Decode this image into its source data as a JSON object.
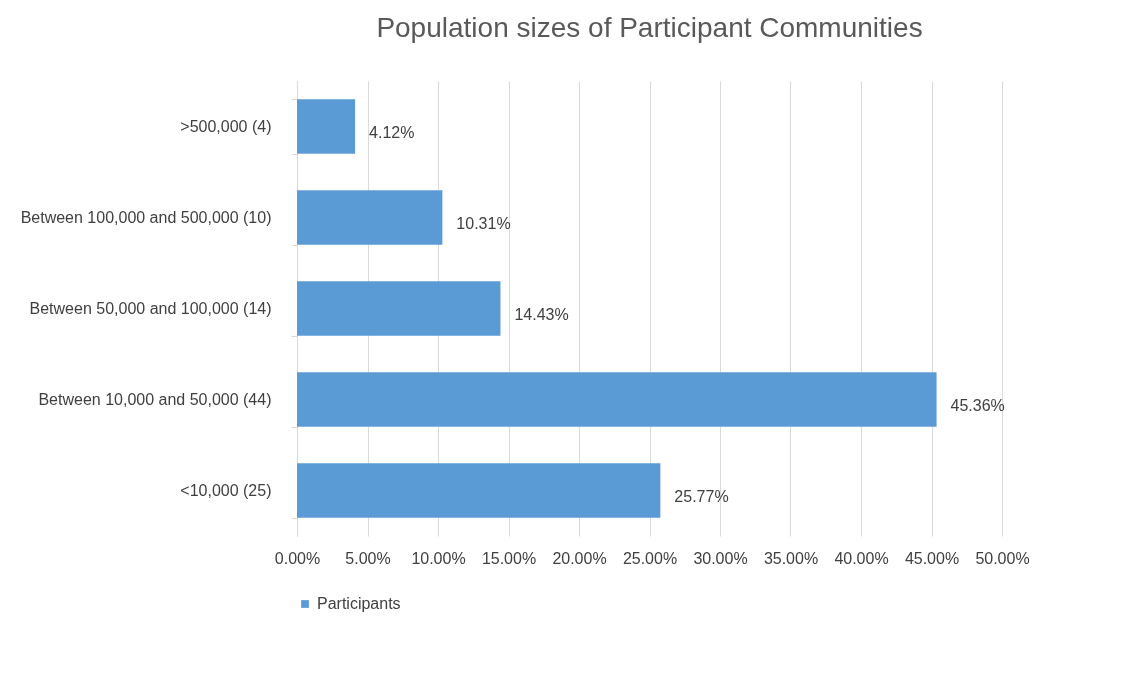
{
  "chart_data": {
    "type": "bar",
    "orientation": "horizontal",
    "title": "Population sizes of Participant Communities",
    "categories": [
      ">500,000 (4)",
      "Between 100,000 and 500,000 (10)",
      "Between 50,000  and  100,000 (14)",
      "Between 10,000  and  50,000 (44)",
      "<10,000 (25)"
    ],
    "series": [
      {
        "name": "Participants",
        "color": "#5b9bd5",
        "values": [
          4.12,
          10.31,
          14.43,
          45.36,
          25.77
        ],
        "value_labels": [
          "4.12%",
          "10.31%",
          "14.43%",
          "45.36%",
          "25.77%"
        ]
      }
    ],
    "xlim": [
      0,
      50
    ],
    "xticks": [
      {
        "value": 0,
        "label": "0.00%"
      },
      {
        "value": 5,
        "label": "5.00%"
      },
      {
        "value": 10,
        "label": "10.00%"
      },
      {
        "value": 15,
        "label": "15.00%"
      },
      {
        "value": 20,
        "label": "20.00%"
      },
      {
        "value": 25,
        "label": "25.00%"
      },
      {
        "value": 30,
        "label": "30.00%"
      },
      {
        "value": 35,
        "label": "35.00%"
      },
      {
        "value": 40,
        "label": "40.00%"
      },
      {
        "value": 45,
        "label": "45.00%"
      },
      {
        "value": 50,
        "label": "50.00%"
      }
    ],
    "grid": "x",
    "legend": "bottom"
  }
}
